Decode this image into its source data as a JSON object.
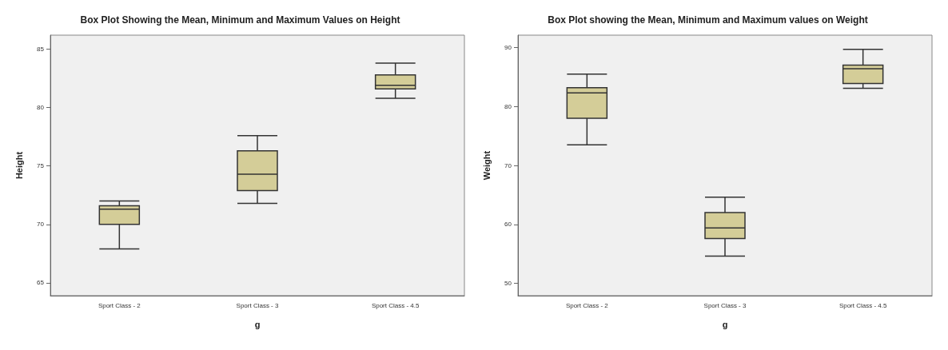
{
  "chart_data": [
    {
      "type": "box",
      "title": "Box Plot Showing the Mean, Minimum and Maximum Values on Height",
      "xlabel": "g",
      "ylabel": "Height",
      "categories": [
        "Sport Class - 2",
        "Sport Class - 3",
        "Sport Class - 4.5"
      ],
      "color": "#d4cd98",
      "ylim": [
        63.9,
        86.2
      ],
      "yticks": [
        65,
        70,
        75,
        80,
        85
      ],
      "grid": false,
      "boxes": [
        {
          "low": 67.9,
          "q1": 70.0,
          "median": 71.3,
          "q3": 71.6,
          "high": 72.0
        },
        {
          "low": 71.8,
          "q1": 72.9,
          "median": 74.3,
          "q3": 76.3,
          "high": 77.6
        },
        {
          "low": 80.8,
          "q1": 81.6,
          "median": 81.9,
          "q3": 82.8,
          "high": 83.8
        }
      ]
    },
    {
      "type": "box",
      "title": "Box Plot showing the Mean, Minimum and Maximum values on Weight",
      "xlabel": "g",
      "ylabel": "Weight",
      "categories": [
        "Sport Class - 2",
        "Sport Class - 3",
        "Sport Class - 4.5"
      ],
      "color": "#d4cd98",
      "ylim": [
        47.9,
        92.1
      ],
      "yticks": [
        50,
        60,
        70,
        80,
        90
      ],
      "grid": false,
      "boxes": [
        {
          "low": 73.5,
          "q1": 78.0,
          "median": 82.3,
          "q3": 83.2,
          "high": 85.5
        },
        {
          "low": 54.6,
          "q1": 57.6,
          "median": 59.4,
          "q3": 62.0,
          "high": 64.6
        },
        {
          "low": 83.1,
          "q1": 83.9,
          "median": 86.4,
          "q3": 87.0,
          "high": 89.7
        }
      ]
    }
  ]
}
